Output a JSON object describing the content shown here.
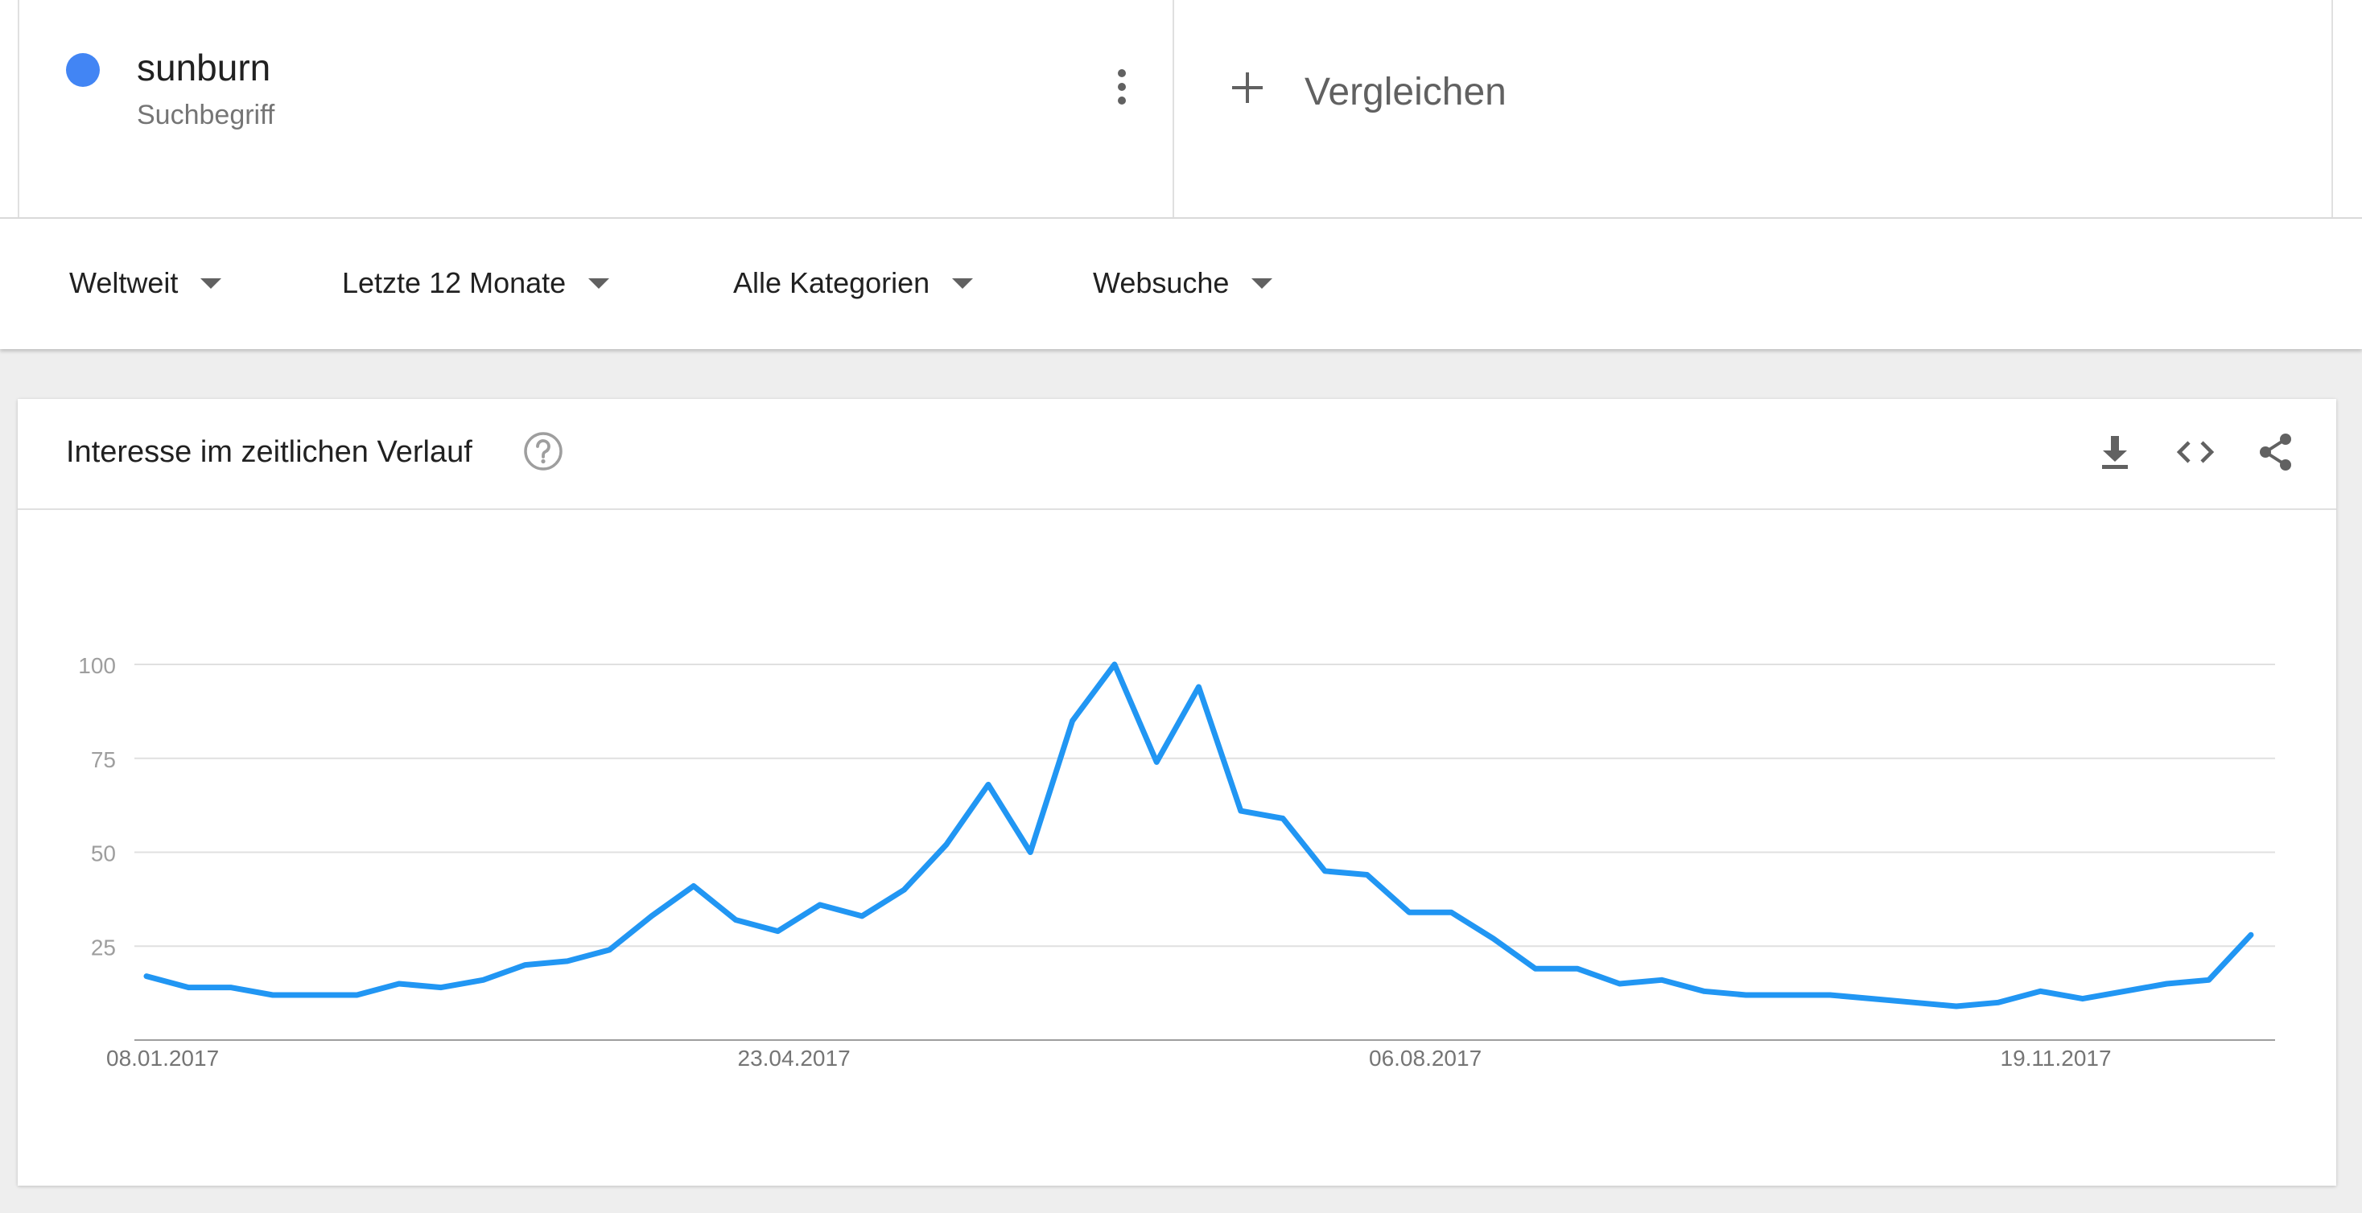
{
  "term": {
    "name": "sunburn",
    "type": "Suchbegriff",
    "color": "#4285f4",
    "menu_icon": "more-vert-icon"
  },
  "compare": {
    "icon": "plus-icon",
    "label": "Vergleichen"
  },
  "filters": [
    {
      "label": "Weltweit"
    },
    {
      "label": "Letzte 12 Monate"
    },
    {
      "label": "Alle Kategorien"
    },
    {
      "label": "Websuche"
    }
  ],
  "card": {
    "title": "Interesse im zeitlichen Verlauf",
    "icons": [
      "help-icon",
      "download-icon",
      "embed-code-icon",
      "share-icon"
    ]
  },
  "chart_data": {
    "type": "line",
    "title": "",
    "xlabel": "",
    "ylabel": "",
    "ylim": [
      0,
      100
    ],
    "yticks": [
      25,
      50,
      75,
      100
    ],
    "grid": true,
    "x_tick_labels": [
      "08.01.2017",
      "23.04.2017",
      "06.08.2017",
      "19.11.2017"
    ],
    "x_tick_indices": [
      0,
      15,
      30,
      45
    ],
    "line_color": "#2196f3",
    "series": [
      {
        "values": [
          17,
          14,
          14,
          12,
          12,
          12,
          15,
          14,
          16,
          20,
          21,
          24,
          33,
          41,
          32,
          29,
          36,
          33,
          40,
          52,
          68,
          50,
          85,
          100,
          74,
          94,
          61,
          59,
          45,
          44,
          34,
          34,
          27,
          19,
          19,
          15,
          16,
          13,
          12,
          12,
          12,
          11,
          10,
          9,
          10,
          13,
          11,
          13,
          15,
          16,
          28
        ]
      }
    ]
  }
}
